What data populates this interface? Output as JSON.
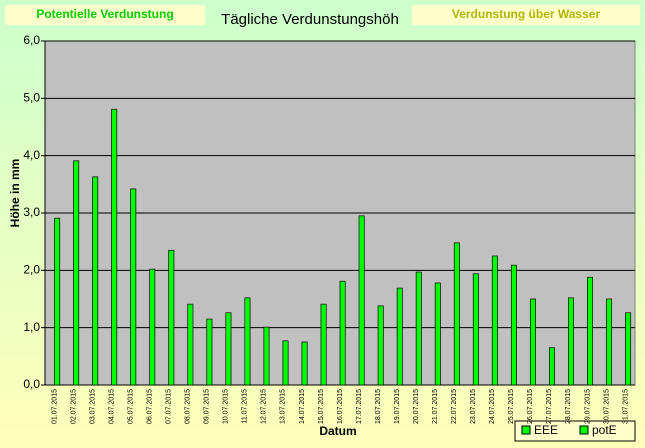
{
  "chart_data": {
    "type": "bar",
    "title": "Tägliche Verdunstungshöh",
    "buttons": [
      "Potentielle Verdunstung",
      "Verdunstung über Wasser"
    ],
    "ylabel": "Höhe in mm",
    "xlabel": "Datum",
    "categories": [
      "01.07.2015",
      "02.07.2015",
      "03.07.2015",
      "04.07.2015",
      "05.07.2015",
      "06.07.2015",
      "07.07.2015",
      "08.07.2015",
      "09.07.2015",
      "10.07.2015",
      "11.07.2015",
      "12.07.2015",
      "13.07.2015",
      "14.07.2015",
      "15.07.2015",
      "16.07.2015",
      "17.07.2015",
      "18.07.2015",
      "19.07.2015",
      "20.07.2015",
      "21.07.2015",
      "22.07.2015",
      "23.07.2015",
      "24.07.2015",
      "25.07.2015",
      "26.07.2015",
      "27.07.2015",
      "28.07.2015",
      "29.07.2015",
      "30.07.2015",
      "31.07.2015"
    ],
    "series": [
      {
        "name": "EEE",
        "color": "#00ff00",
        "values": [
          null,
          null,
          null,
          null,
          null,
          null,
          null,
          null,
          null,
          null,
          null,
          null,
          null,
          null,
          null,
          null,
          null,
          null,
          null,
          null,
          null,
          null,
          null,
          null,
          null,
          null,
          null,
          null,
          null,
          null,
          null
        ]
      },
      {
        "name": "potE",
        "color": "#00ff00",
        "values": [
          2.91,
          3.91,
          3.63,
          4.81,
          3.42,
          2.02,
          2.35,
          1.41,
          1.15,
          1.26,
          1.52,
          1.01,
          0.77,
          0.75,
          1.41,
          1.81,
          2.95,
          1.38,
          1.69,
          1.97,
          1.78,
          2.48,
          1.94,
          2.25,
          2.09,
          1.5,
          0.65,
          1.52,
          1.88,
          1.5,
          1.26
        ]
      }
    ],
    "ylim": [
      0,
      6
    ],
    "yticks": [
      {
        "value": 0,
        "label": "0,0"
      },
      {
        "value": 1,
        "label": "1,0"
      },
      {
        "value": 2,
        "label": "2,0"
      },
      {
        "value": 3,
        "label": "3,0"
      },
      {
        "value": 4,
        "label": "4,0"
      },
      {
        "value": 5,
        "label": "5,0"
      },
      {
        "value": 6,
        "label": "6,0"
      }
    ],
    "grid": true,
    "legend": "bottom-right"
  }
}
